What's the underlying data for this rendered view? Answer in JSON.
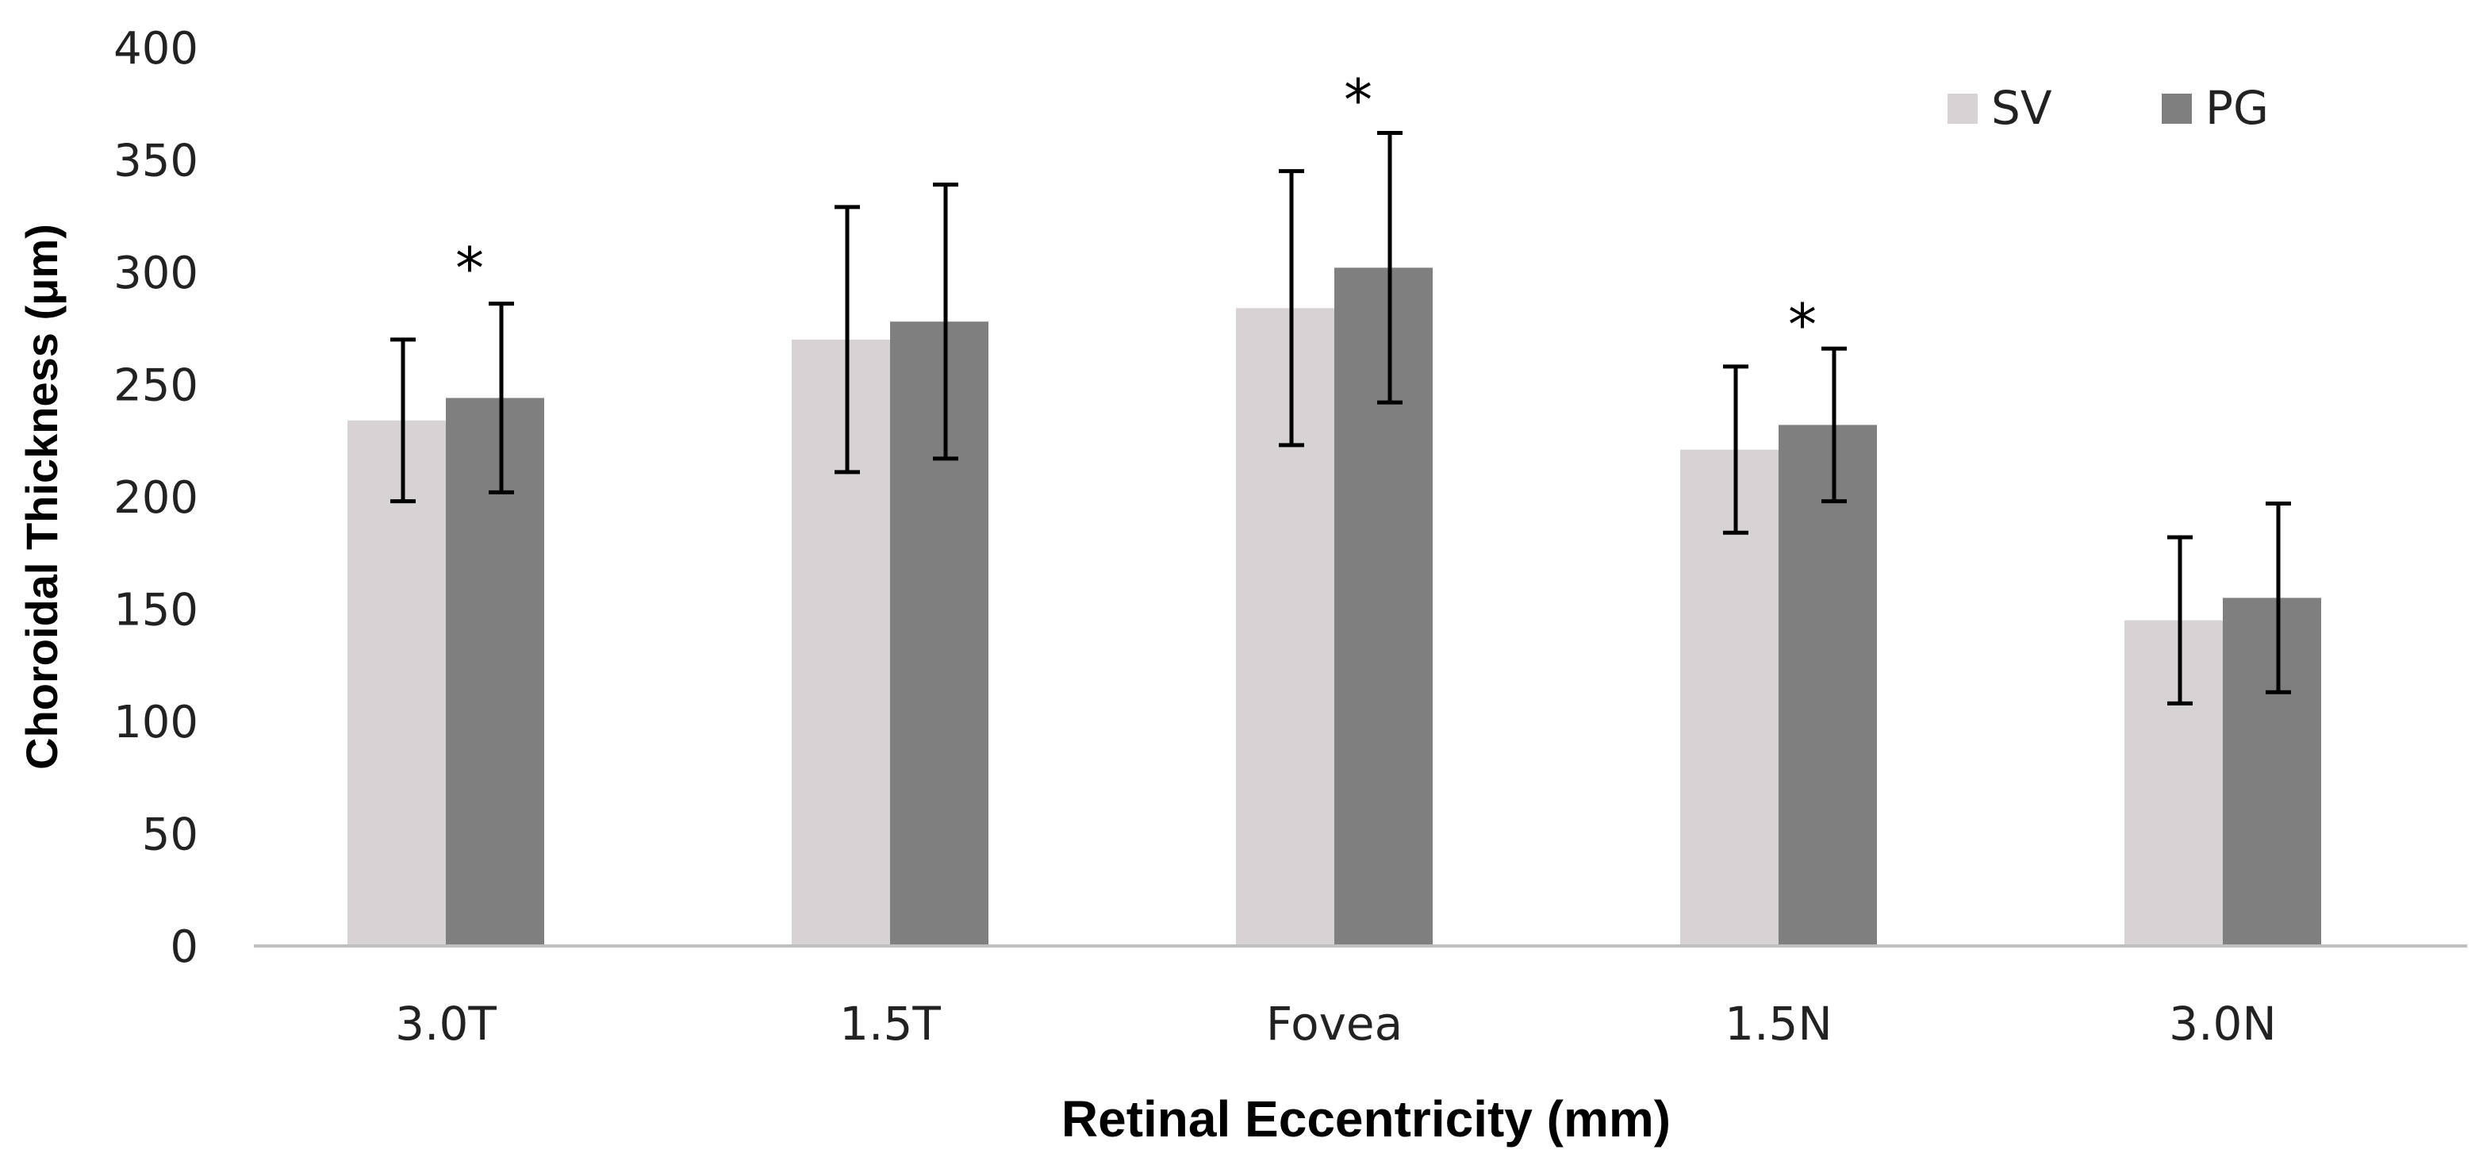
{
  "chart_data": {
    "type": "bar",
    "title": "",
    "xlabel": "Retinal Eccentricity (mm)",
    "ylabel": "Choroidal Thickness (μm)",
    "ylim": [
      0,
      400
    ],
    "yticks": [
      0,
      50,
      100,
      150,
      200,
      250,
      300,
      350,
      400
    ],
    "ytick_labels": [
      "0",
      "50",
      "100",
      "150",
      "200",
      "250",
      "300",
      "350",
      "400"
    ],
    "grid": false,
    "legend_position": "top-right",
    "categories": [
      "3.0T",
      "1.5T",
      "Fovea",
      "1.5N",
      "3.0N"
    ],
    "series": [
      {
        "name": "SV",
        "color": "#d7d3d4",
        "values": [
          234,
          270,
          284,
          221,
          145
        ],
        "error": [
          36,
          59,
          61,
          37,
          37
        ]
      },
      {
        "name": "PG",
        "color": "#7f7f7f",
        "values": [
          244,
          278,
          302,
          232,
          155
        ],
        "error": [
          42,
          61,
          60,
          34,
          42
        ]
      }
    ],
    "annotations": [
      {
        "category": "3.0T",
        "text": "*",
        "y": 300
      },
      {
        "category": "Fovea",
        "text": "*",
        "y": 375
      },
      {
        "category": "1.5N",
        "text": "*",
        "y": 275
      }
    ],
    "error_bar_color": "#000000",
    "axis_color": "#bfbfbf"
  }
}
